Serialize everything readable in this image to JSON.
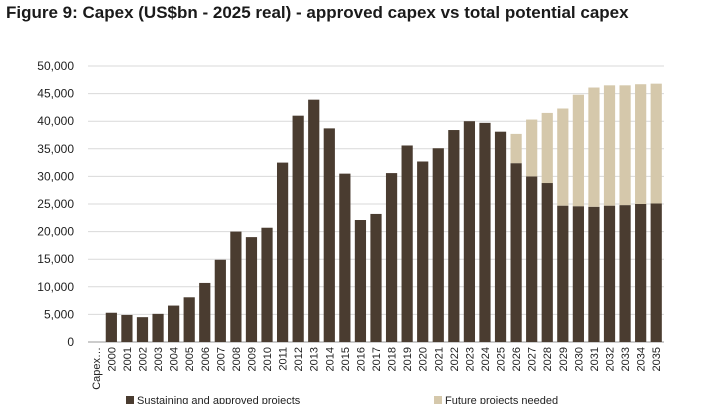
{
  "chart_data": {
    "type": "bar",
    "stacked": true,
    "title": "Figure 9: Capex (US$bn - 2025 real) - approved capex vs total potential capex",
    "categories": [
      "Capex…",
      "2000",
      "2001",
      "2002",
      "2003",
      "2004",
      "2005",
      "2006",
      "2007",
      "2008",
      "2009",
      "2010",
      "2011",
      "2012",
      "2013",
      "2014",
      "2015",
      "2016",
      "2017",
      "2018",
      "2019",
      "2020",
      "2021",
      "2022",
      "2023",
      "2024",
      "2025",
      "2026",
      "2027",
      "2028",
      "2029",
      "2030",
      "2031",
      "2032",
      "2033",
      "2034",
      "2035"
    ],
    "ylim": [
      0,
      50000
    ],
    "yticks": [
      0,
      5000,
      10000,
      15000,
      20000,
      25000,
      30000,
      35000,
      40000,
      45000,
      50000
    ],
    "ytick_labels": [
      "0",
      "5,000",
      "10,000",
      "15,000",
      "20,000",
      "25,000",
      "30,000",
      "35,000",
      "40,000",
      "45,000",
      "50,000"
    ],
    "grid": true,
    "legend_position": "bottom",
    "series": [
      {
        "name": "Sustaining and approved projects",
        "color": "#4a3c30",
        "values": [
          0,
          5300,
          4900,
          4500,
          5100,
          6600,
          8100,
          10700,
          14900,
          20000,
          19000,
          20700,
          32500,
          41000,
          43900,
          38700,
          30500,
          22100,
          23200,
          30600,
          35600,
          32700,
          35100,
          38400,
          40000,
          39700,
          38100,
          32400,
          30000,
          28800,
          24700,
          24600,
          24500,
          24700,
          24800,
          25000,
          25100
        ]
      },
      {
        "name": "Future projects needed",
        "color": "#d5c8ab",
        "values": [
          0,
          0,
          0,
          0,
          0,
          0,
          0,
          0,
          0,
          0,
          0,
          0,
          0,
          0,
          0,
          0,
          0,
          0,
          0,
          0,
          0,
          0,
          0,
          0,
          0,
          0,
          0,
          5300,
          10300,
          12700,
          17600,
          20200,
          21600,
          21800,
          21700,
          21700,
          21700
        ]
      }
    ],
    "legend_labels": [
      "Sustaining and approved projects",
      "Future projects needed"
    ]
  }
}
